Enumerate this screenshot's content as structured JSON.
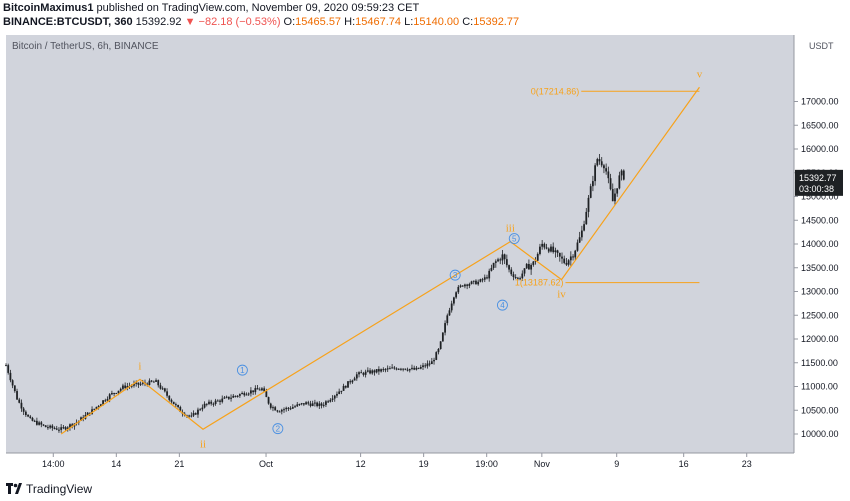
{
  "header": {
    "author": "BitcoinMaximus1",
    "published": "published on TradingView.com, November 09, 2020 09:59:23 CET",
    "symbol": "BINANCE:BTCUSDT, 360",
    "last": "15392.92",
    "change": "▼ −82.18 (−0.53%)",
    "o_label": "O:",
    "o": "15465.57",
    "h_label": "H:",
    "h": "15467.74",
    "l_label": "L:",
    "l": "15140.00",
    "c_label": "C:",
    "c": "15392.77"
  },
  "footer": {
    "brand": "TradingView"
  },
  "colors": {
    "bg": "#d1d4dc",
    "candle": "#1e2124",
    "wave": "#f7a21b",
    "subwave": "#4a90e2",
    "price_tag": "#1e2124"
  },
  "chart_data": {
    "type": "candlestick",
    "title": "Bitcoin / TetherUS, 6h, BINANCE",
    "currency": "USDT",
    "ylim": [
      9600,
      18400
    ],
    "xlim": [
      0,
      100
    ],
    "y_ticks": [
      "17000.00",
      "16500.00",
      "16000.00",
      "15500.00",
      "15000.00",
      "14500.00",
      "14000.00",
      "13500.00",
      "13000.00",
      "12500.00",
      "12000.00",
      "11500.00",
      "11000.00",
      "10500.00",
      "10000.00"
    ],
    "x_ticks": [
      {
        "t": 6,
        "label": "14:00"
      },
      {
        "t": 14,
        "label": "14"
      },
      {
        "t": 22,
        "label": "21"
      },
      {
        "t": 33,
        "label": "Oct"
      },
      {
        "t": 45,
        "label": "12"
      },
      {
        "t": 53,
        "label": "19"
      },
      {
        "t": 61,
        "label": "19:00"
      },
      {
        "t": 68,
        "label": "Nov"
      },
      {
        "t": 77.5,
        "label": "9"
      },
      {
        "t": 86,
        "label": "16"
      },
      {
        "t": 94,
        "label": "23"
      }
    ],
    "price_path": [
      [
        0,
        11450
      ],
      [
        1.5,
        10700
      ],
      [
        3,
        10300
      ],
      [
        5,
        10150
      ],
      [
        7,
        10100
      ],
      [
        9,
        10250
      ],
      [
        11,
        10500
      ],
      [
        13,
        10800
      ],
      [
        15,
        11000
      ],
      [
        17,
        11050
      ],
      [
        19,
        11100
      ],
      [
        20.5,
        10800
      ],
      [
        22,
        10500
      ],
      [
        23.5,
        10350
      ],
      [
        25,
        10600
      ],
      [
        27,
        10700
      ],
      [
        29,
        10800
      ],
      [
        31,
        10900
      ],
      [
        32.5,
        10950
      ],
      [
        33.5,
        10600
      ],
      [
        34.5,
        10500
      ],
      [
        36,
        10550
      ],
      [
        38,
        10650
      ],
      [
        40,
        10600
      ],
      [
        41.5,
        10800
      ],
      [
        43,
        11000
      ],
      [
        44.5,
        11250
      ],
      [
        46,
        11300
      ],
      [
        48,
        11350
      ],
      [
        50,
        11400
      ],
      [
        52,
        11350
      ],
      [
        54,
        11500
      ],
      [
        55,
        11800
      ],
      [
        56,
        12500
      ],
      [
        57,
        13000
      ],
      [
        58,
        13150
      ],
      [
        60,
        13200
      ],
      [
        61,
        13300
      ],
      [
        62,
        13600
      ],
      [
        63,
        13750
      ],
      [
        64,
        13400
      ],
      [
        65,
        13250
      ],
      [
        66,
        13500
      ],
      [
        67,
        13600
      ],
      [
        68,
        14000
      ],
      [
        69,
        13900
      ],
      [
        70,
        13750
      ],
      [
        71,
        13600
      ],
      [
        72,
        13800
      ],
      [
        73,
        14200
      ],
      [
        74,
        15000
      ],
      [
        75,
        15800
      ],
      [
        76,
        15650
      ],
      [
        77,
        14900
      ],
      [
        78,
        15500
      ],
      [
        78.5,
        15400
      ]
    ],
    "annotations": {
      "waves": [
        {
          "label": "i",
          "t": 17,
          "price": 11150,
          "pos": "above"
        },
        {
          "label": "ii",
          "t": 25,
          "price": 10100,
          "pos": "below"
        },
        {
          "label": "iii",
          "t": 64,
          "price": 14050,
          "pos": "above"
        },
        {
          "label": "iv",
          "t": 70.5,
          "price": 13250,
          "pos": "below"
        },
        {
          "label": "v",
          "t": 88,
          "price": 17300,
          "pos": "above"
        }
      ],
      "subwaves": [
        {
          "label": "1",
          "t": 30,
          "price": 11050,
          "pos": "above"
        },
        {
          "label": "2",
          "t": 34.5,
          "price": 10450,
          "pos": "below"
        },
        {
          "label": "3",
          "t": 57,
          "price": 13050,
          "pos": "above"
        },
        {
          "label": "4",
          "t": 63,
          "price": 13050,
          "pos": "below"
        },
        {
          "label": "5",
          "t": 64.5,
          "price": 13820,
          "pos": "above"
        }
      ],
      "wave_path": [
        [
          7,
          10000
        ],
        [
          17,
          11150
        ],
        [
          25,
          10100
        ],
        [
          64,
          14050
        ],
        [
          70.5,
          13250
        ],
        [
          88,
          17300
        ]
      ],
      "fib": [
        {
          "label": "0(17214.86)",
          "price": 17214.86,
          "t0": 73,
          "t1": 88
        },
        {
          "label": "1(13187.62)",
          "price": 13187.62,
          "t0": 71,
          "t1": 88
        }
      ]
    },
    "price_label": {
      "price": 15392.77,
      "text": "15392.77",
      "countdown": "03:00:38"
    }
  }
}
